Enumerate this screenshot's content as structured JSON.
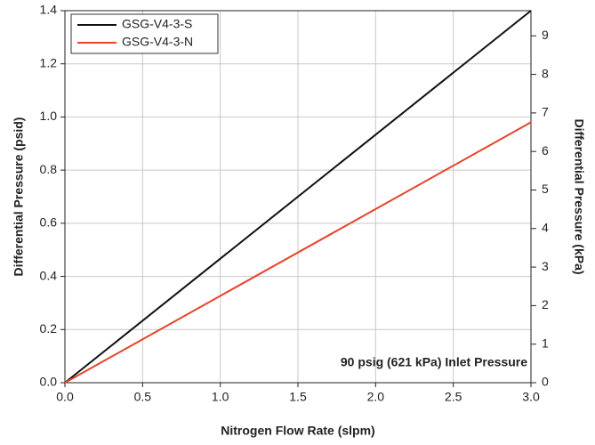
{
  "chart_data": {
    "type": "line",
    "x_label": "Nitrogen Flow Rate (slpm)",
    "y_label": "Differential Pressure (psid)",
    "y2_label": "Differential Pressure (kPa)",
    "annotation": "90 psig (621 kPa) Inlet Pressure",
    "x": [
      0,
      3.0
    ],
    "series": [
      {
        "name": "GSG-V4-3-S",
        "color": "#111111",
        "values": [
          0,
          1.4
        ]
      },
      {
        "name": "GSG-V4-3-N",
        "color": "#e8432a",
        "values": [
          0,
          0.98
        ]
      }
    ],
    "xlim": [
      0,
      3.0
    ],
    "xticks": [
      {
        "value": 0,
        "label": "0.0"
      },
      {
        "value": 0.5,
        "label": "0.5"
      },
      {
        "value": 1,
        "label": "1.0"
      },
      {
        "value": 1.5,
        "label": "1.5"
      },
      {
        "value": 2,
        "label": "2.0"
      },
      {
        "value": 2.5,
        "label": "2.5"
      },
      {
        "value": 3,
        "label": "3.0"
      }
    ],
    "ylim": [
      0,
      1.4
    ],
    "yticks": [
      {
        "value": 0,
        "label": "0.0"
      },
      {
        "value": 0.2,
        "label": "0.2"
      },
      {
        "value": 0.4,
        "label": "0.4"
      },
      {
        "value": 0.6,
        "label": "0.6"
      },
      {
        "value": 0.8,
        "label": "0.8"
      },
      {
        "value": 1,
        "label": "1.0"
      },
      {
        "value": 1.2,
        "label": "1.2"
      },
      {
        "value": 1.4,
        "label": "1.4"
      }
    ],
    "y2lim": [
      0,
      9.653
    ],
    "y2ticks": [
      0,
      1,
      2,
      3,
      4,
      5,
      6,
      7,
      8,
      9
    ],
    "grid": true,
    "legend": "upper left"
  }
}
